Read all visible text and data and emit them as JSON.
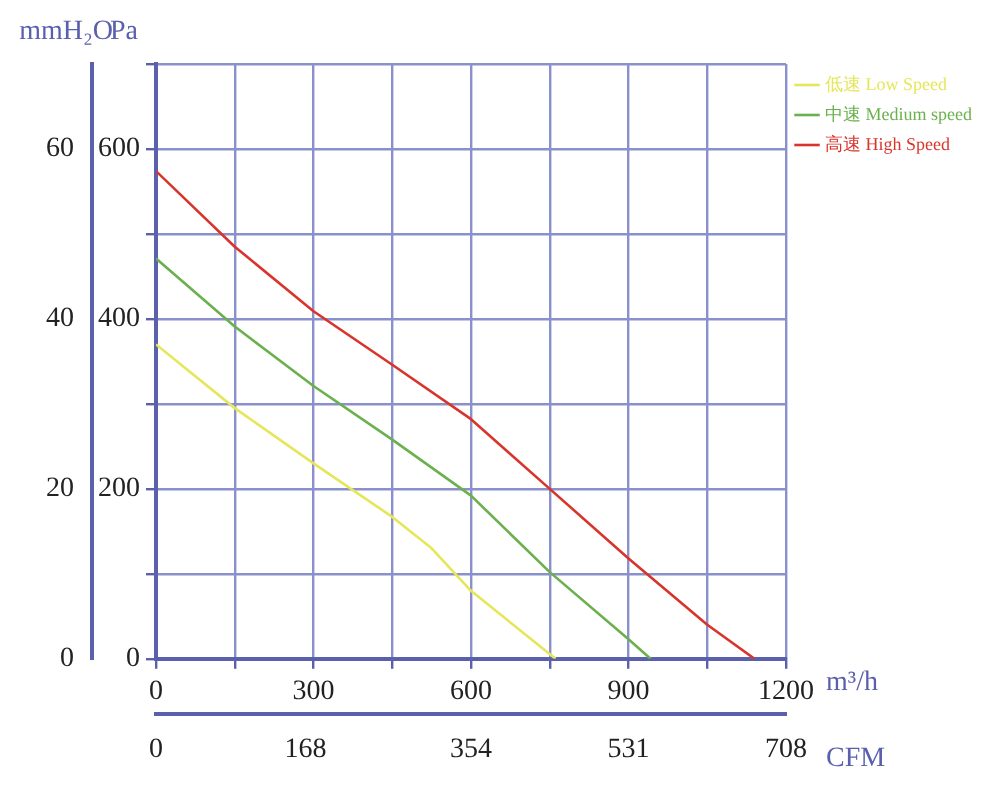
{
  "chart_data": {
    "type": "line",
    "xlabel": "m³/h",
    "x2label": "CFM",
    "ylabel": "Pa",
    "y2label": "mmH₂O",
    "xlim": [
      0,
      1200
    ],
    "xticks": [
      0,
      {
        "value": 150,
        "label": null
      },
      300,
      {
        "value": 450,
        "label": null
      },
      600,
      {
        "value": 750,
        "label": null
      },
      900,
      {
        "value": 1050,
        "label": null
      },
      1200
    ],
    "x2lim": [
      0,
      708
    ],
    "x2ticks": [
      0,
      168,
      354,
      531,
      708
    ],
    "ylim": [
      0,
      700
    ],
    "yticks": [
      0,
      {
        "value": 100,
        "label": null
      },
      200,
      {
        "value": 300,
        "label": null
      },
      400,
      {
        "value": 500,
        "label": null
      },
      600,
      {
        "value": 700,
        "label": null
      }
    ],
    "y2lim": [
      0,
      70
    ],
    "y2ticks": [
      0,
      20,
      40,
      60
    ],
    "grid": true,
    "legend": "top right",
    "marker": "none",
    "line_style": "solid",
    "series": [
      {
        "name": "低速 Low Speed",
        "color": "#e6e65a",
        "x": [
          0,
          150,
          300,
          450,
          525,
          600,
          761
        ],
        "values": [
          370,
          295,
          230,
          167,
          130,
          80,
          0
        ]
      },
      {
        "name": "中速 Medium speed",
        "color": "#6ab04c",
        "x": [
          0,
          150,
          300,
          450,
          600,
          750,
          900,
          942
        ],
        "values": [
          471,
          391,
          321,
          258,
          192,
          102,
          23,
          0
        ]
      },
      {
        "name": "高速 High Speed",
        "color": "#d9342b",
        "x": [
          0,
          150,
          300,
          450,
          600,
          750,
          900,
          1050,
          1140
        ],
        "values": [
          574,
          485,
          409,
          346,
          282,
          200,
          118,
          40,
          0
        ]
      }
    ]
  }
}
